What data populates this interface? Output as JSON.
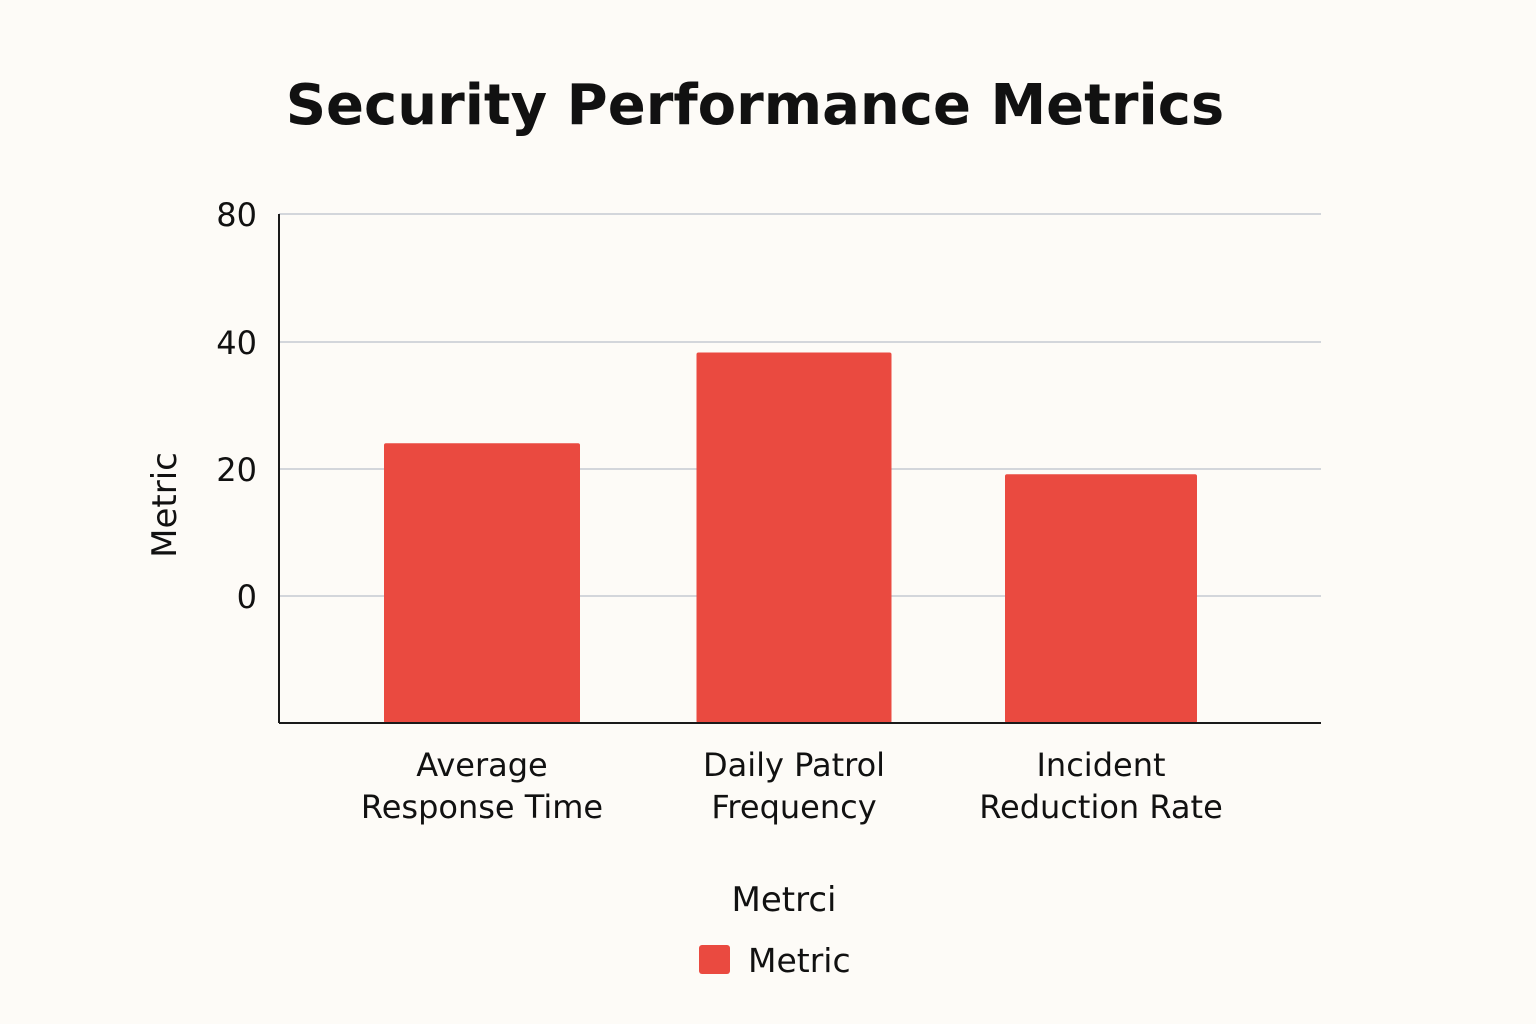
{
  "chart_data": {
    "type": "bar",
    "title": "Security Performance Metrics",
    "xlabel": "Metrci",
    "ylabel": "Metric",
    "categories": [
      [
        "Average",
        "Response Time"
      ],
      [
        "Daily Patrol",
        "Frequency"
      ],
      [
        "Incident",
        "Reduction Rate"
      ]
    ],
    "series": [
      {
        "name": "Metric",
        "color": "#ea4a40",
        "values": [
          32,
          51,
          25.5
        ]
      }
    ],
    "yticks": [
      80,
      40,
      20,
      0
    ],
    "ylim": [
      -20,
      80
    ],
    "grid": true,
    "legend": "bottom-center"
  }
}
